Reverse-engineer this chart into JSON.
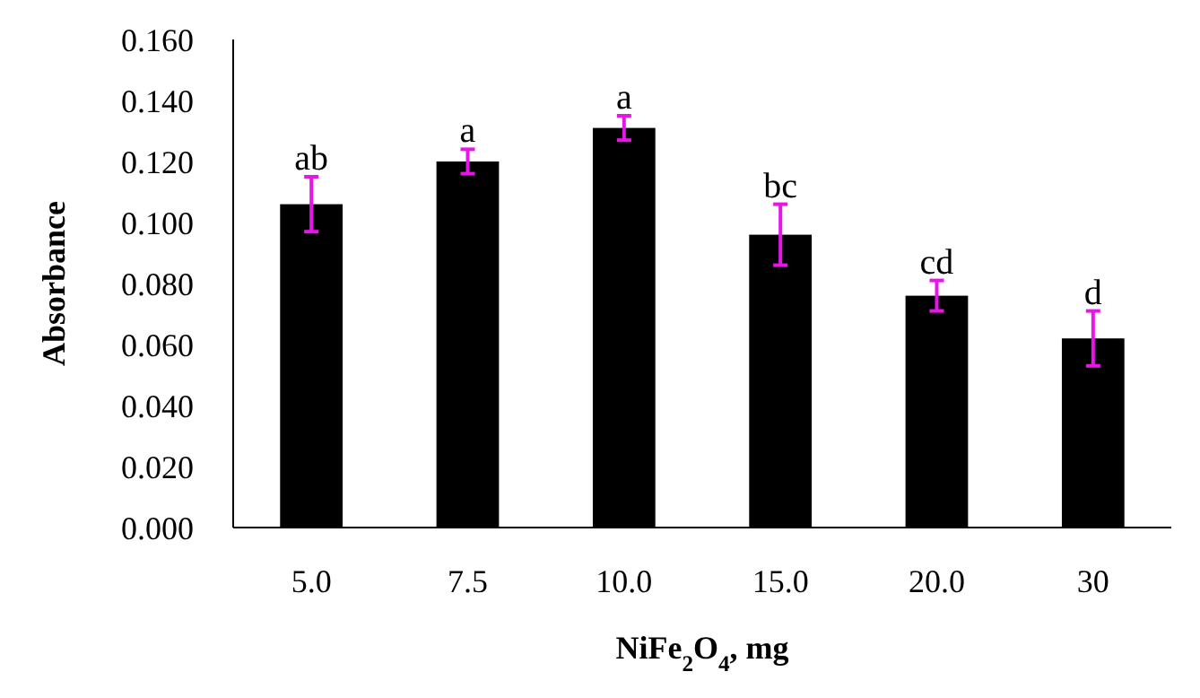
{
  "chart_data": {
    "type": "bar",
    "xlabel": "NiFe$_{2}$O$_{4}$, mg",
    "ylabel": "Absorbance",
    "categories": [
      "5.0",
      "7.5",
      "10.0",
      "15.0",
      "20.0",
      "30"
    ],
    "values": [
      0.106,
      0.12,
      0.131,
      0.096,
      0.076,
      0.062
    ],
    "errors": [
      0.009,
      0.004,
      0.004,
      0.01,
      0.005,
      0.009
    ],
    "color": "#000000",
    "ylim": [
      0,
      0.16
    ],
    "yticks": [
      {
        "value": 0,
        "label": "0.000"
      },
      {
        "value": 0.02,
        "label": "0.020"
      },
      {
        "value": 0.04,
        "label": "0.040"
      },
      {
        "value": 0.06,
        "label": "0.060"
      },
      {
        "value": 0.08,
        "label": "0.080"
      },
      {
        "value": 0.1,
        "label": "0.100"
      },
      {
        "value": 0.12,
        "label": "0.120"
      },
      {
        "value": 0.14,
        "label": "0.140"
      },
      {
        "value": 0.16,
        "label": "0.160"
      }
    ],
    "grid": false,
    "annotations": [
      {
        "text": "ab",
        "x": "5.0",
        "y": 0.115
      },
      {
        "text": "a",
        "x": "7.5",
        "y": 0.124
      },
      {
        "text": "a",
        "x": "10.0",
        "y": 0.135
      },
      {
        "text": "bc",
        "x": "15.0",
        "y": 0.106
      },
      {
        "text": "cd",
        "x": "20.0",
        "y": 0.081
      },
      {
        "text": "d",
        "x": "30",
        "y": 0.071
      }
    ]
  }
}
